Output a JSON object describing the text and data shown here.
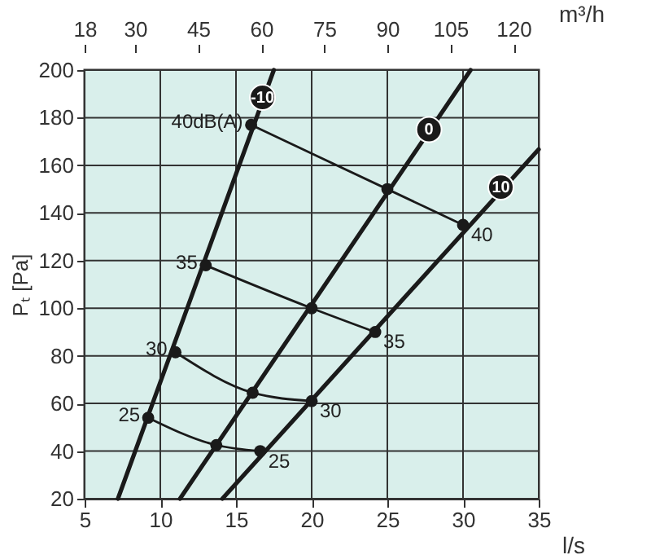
{
  "chart_data": {
    "type": "line",
    "xlabel": "l/s",
    "x2label": "m³/h",
    "ylabel": "Pₜ [Pa]",
    "xlim": [
      5,
      35
    ],
    "xticks": [
      5,
      10,
      15,
      20,
      25,
      30,
      35
    ],
    "x2lim": [
      18,
      126
    ],
    "x2ticks": [
      18,
      30,
      45,
      60,
      75,
      90,
      105,
      120
    ],
    "ylim": [
      20,
      200
    ],
    "yticks": [
      20,
      40,
      60,
      80,
      100,
      120,
      140,
      160,
      180,
      200
    ],
    "grid": true,
    "series": [
      {
        "name": "-10",
        "type": "line",
        "marker": "none",
        "color": "#1a1a1a",
        "x": [
          7.2,
          17.5
        ],
        "values": [
          20,
          200
        ]
      },
      {
        "name": "0",
        "type": "line",
        "marker": "none",
        "color": "#1a1a1a",
        "x": [
          11.3,
          30.5
        ],
        "values": [
          20,
          200
        ]
      },
      {
        "name": "10",
        "type": "line",
        "marker": "none",
        "color": "#1a1a1a",
        "x": [
          14.1,
          35
        ],
        "values": [
          20,
          166.7
        ]
      },
      {
        "type": "line",
        "marker": "circle",
        "color": "#1a1a1a",
        "x": [
          9.2,
          13.7,
          16.6
        ],
        "values": [
          54,
          42.5,
          40
        ]
      },
      {
        "type": "line",
        "marker": "circle",
        "color": "#1a1a1a",
        "x": [
          11,
          16.1,
          20
        ],
        "values": [
          81.5,
          64.5,
          61
        ]
      },
      {
        "type": "line",
        "marker": "circle",
        "color": "#1a1a1a",
        "x": [
          13,
          20,
          24.2
        ],
        "values": [
          118,
          100,
          90
        ]
      },
      {
        "type": "line",
        "marker": "circle",
        "color": "#1a1a1a",
        "x": [
          16,
          25,
          30
        ],
        "values": [
          177,
          150,
          135
        ]
      }
    ],
    "annotations": [
      {
        "text": "25",
        "x": 9.2,
        "y": 54
      },
      {
        "text": "25",
        "x": 16.6,
        "y": 40
      },
      {
        "text": "30",
        "x": 11,
        "y": 81.5
      },
      {
        "text": "30",
        "x": 20,
        "y": 61
      },
      {
        "text": "35",
        "x": 13,
        "y": 118
      },
      {
        "text": "35",
        "x": 24.2,
        "y": 90
      },
      {
        "text": "40dB(A)",
        "x": 16,
        "y": 177
      },
      {
        "text": "40",
        "x": 30,
        "y": 135
      }
    ]
  }
}
